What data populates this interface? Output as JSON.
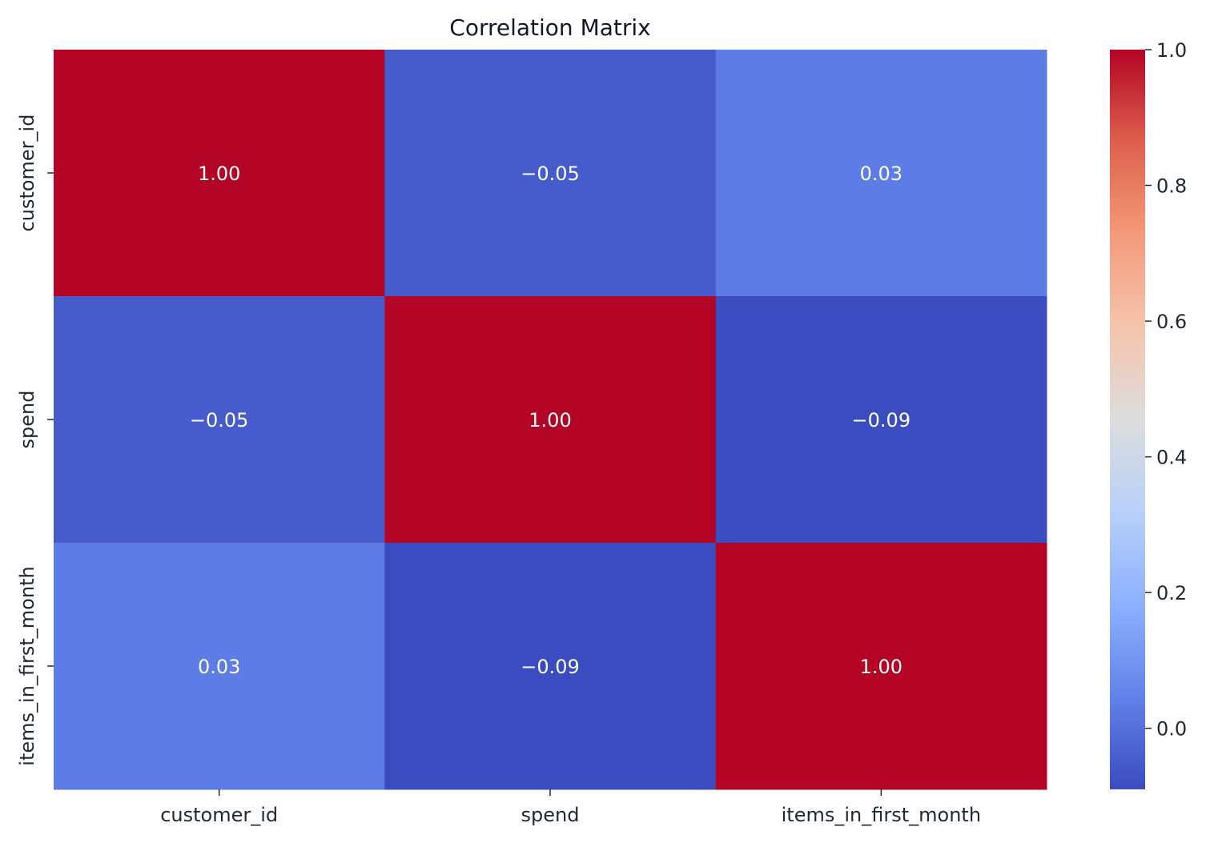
{
  "chart_data": {
    "type": "heatmap",
    "title": "Correlation Matrix",
    "xlabel": "",
    "ylabel": "",
    "x_categories": [
      "customer_id",
      "spend",
      "items_in_first_month"
    ],
    "y_categories": [
      "customer_id",
      "spend",
      "items_in_first_month"
    ],
    "values": [
      [
        1.0,
        -0.05,
        0.03
      ],
      [
        -0.05,
        1.0,
        -0.09
      ],
      [
        0.03,
        -0.09,
        1.0
      ]
    ],
    "cell_labels": [
      [
        "1.00",
        "−0.05",
        "0.03"
      ],
      [
        "−0.05",
        "1.00",
        "−0.09"
      ],
      [
        "0.03",
        "−0.09",
        "1.00"
      ]
    ],
    "colormap": "coolwarm",
    "color_range": [
      -0.09,
      1.0
    ],
    "colorbar_ticks": [
      0.0,
      0.2,
      0.4,
      0.6,
      0.8,
      1.0
    ],
    "colorbar_tick_labels": [
      "0.0",
      "0.2",
      "0.4",
      "0.6",
      "0.8",
      "1.0"
    ],
    "colors": {
      "low": "#3b4cc0",
      "mid": "#dddddd",
      "high": "#b40426",
      "cell_text": "#ffffff",
      "axis_text": "#1f2933"
    }
  }
}
